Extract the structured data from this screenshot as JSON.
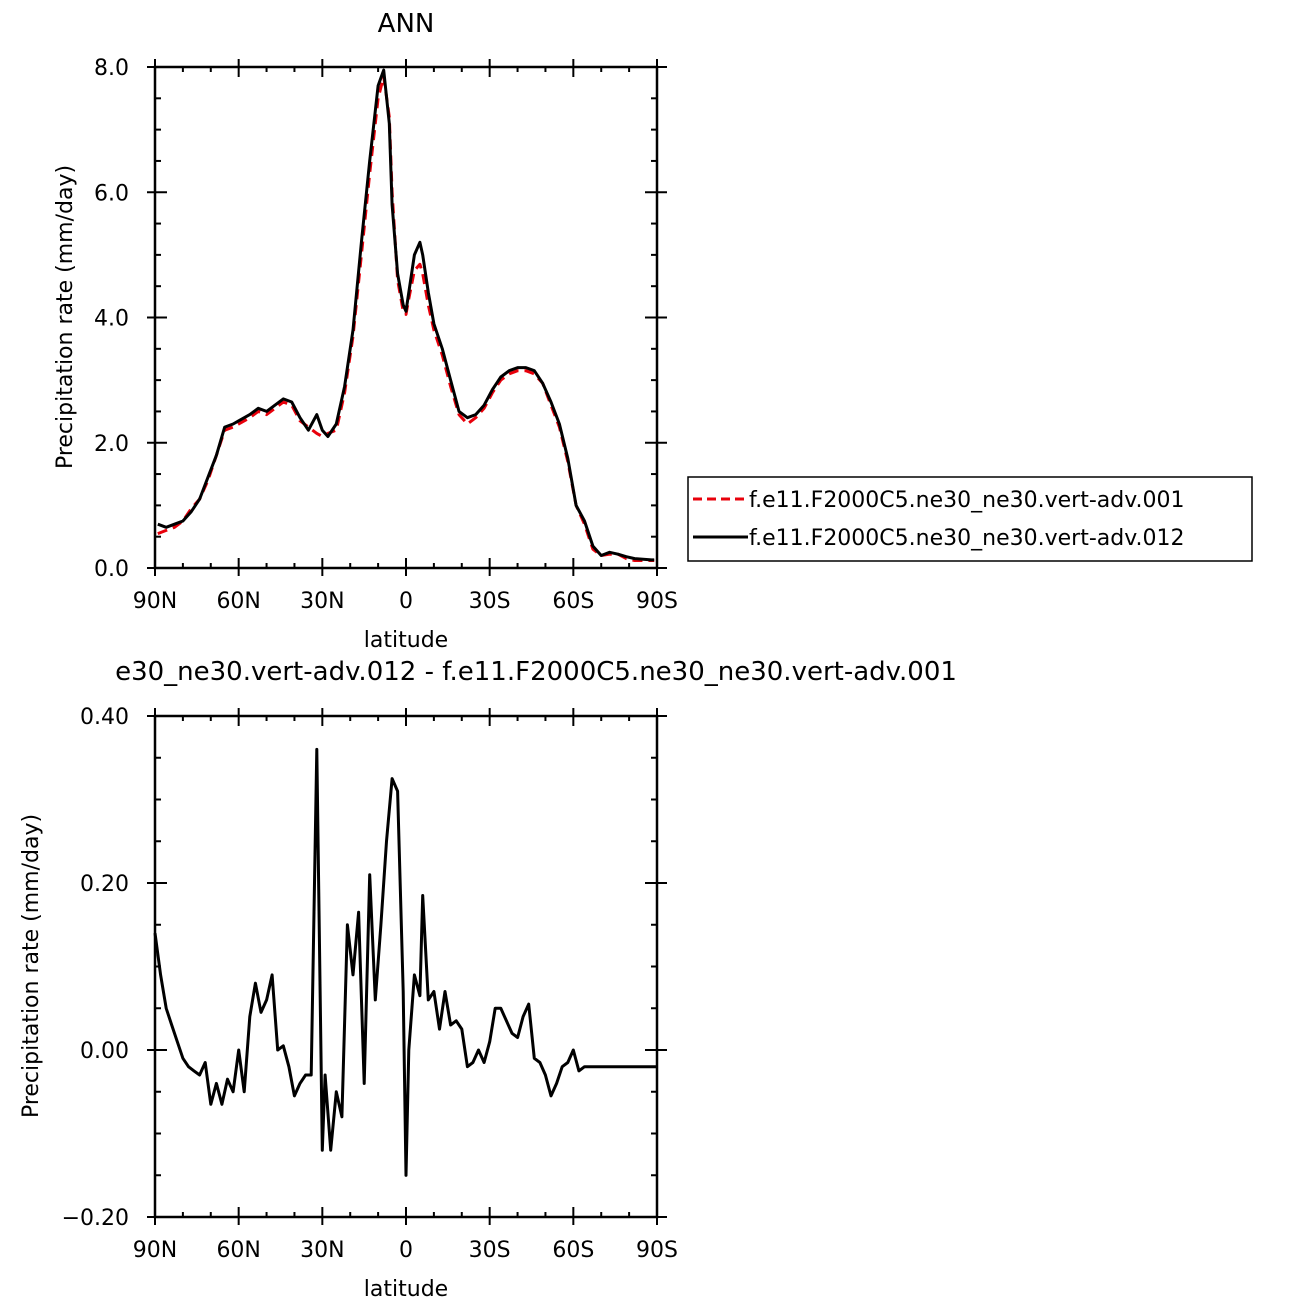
{
  "chart_data": [
    {
      "type": "line",
      "title": "ANN",
      "xlabel": "latitude",
      "ylabel": "Precipitation rate (mm/day)",
      "xlim": [
        90,
        -90
      ],
      "ylim": [
        0,
        8
      ],
      "x_ticks": [
        {
          "value": 90,
          "label": "90N"
        },
        {
          "value": 60,
          "label": "60N"
        },
        {
          "value": 30,
          "label": "30N"
        },
        {
          "value": 0,
          "label": "0"
        },
        {
          "value": -30,
          "label": "30S"
        },
        {
          "value": -60,
          "label": "60S"
        },
        {
          "value": -90,
          "label": "90S"
        }
      ],
      "y_ticks": [
        {
          "value": 0,
          "label": "0.0"
        },
        {
          "value": 2,
          "label": "2.0"
        },
        {
          "value": 4,
          "label": "4.0"
        },
        {
          "value": 6,
          "label": "6.0"
        },
        {
          "value": 8,
          "label": "8.0"
        }
      ],
      "legend": {
        "position": "right",
        "boxed": true
      },
      "series": [
        {
          "name": "f.e11.F2000C5.ne30_ne30.vert-adv.001",
          "color": "#e8000b",
          "dash": "dashed",
          "x": [
            89,
            86,
            83,
            80,
            77,
            74,
            71,
            68,
            65,
            62,
            60,
            56,
            53,
            50,
            47,
            44,
            41,
            38,
            35,
            32,
            30,
            28,
            25,
            22,
            19,
            16,
            13,
            10,
            8,
            6,
            5,
            3,
            1,
            0,
            -1,
            -3,
            -5,
            -6,
            -8,
            -10,
            -13,
            -16,
            -19,
            -22,
            -25,
            -28,
            -31,
            -34,
            -37,
            -40,
            -43,
            -46,
            -49,
            -52,
            -55,
            -58,
            -61,
            -64,
            -67,
            -70,
            -73,
            -76,
            -79,
            -82,
            -85,
            -88,
            -89
          ],
          "y": [
            0.55,
            0.6,
            0.65,
            0.75,
            0.95,
            1.1,
            1.4,
            1.8,
            2.2,
            2.25,
            2.3,
            2.4,
            2.5,
            2.45,
            2.55,
            2.65,
            2.6,
            2.35,
            2.25,
            2.15,
            2.1,
            2.15,
            2.2,
            2.8,
            3.7,
            5.0,
            6.3,
            7.5,
            7.85,
            7.2,
            6.0,
            4.6,
            4.1,
            4.05,
            4.3,
            4.75,
            4.85,
            4.7,
            4.2,
            3.8,
            3.4,
            2.9,
            2.45,
            2.3,
            2.4,
            2.55,
            2.8,
            3.0,
            3.1,
            3.15,
            3.15,
            3.1,
            2.95,
            2.6,
            2.25,
            1.7,
            1.0,
            0.7,
            0.3,
            0.2,
            0.22,
            0.22,
            0.15,
            0.12,
            0.12,
            0.12,
            0.12
          ]
        },
        {
          "name": "f.e11.F2000C5.ne30_ne30.vert-adv.012",
          "color": "#000000",
          "dash": "solid",
          "x": [
            89,
            86,
            83,
            80,
            77,
            74,
            71,
            68,
            65,
            62,
            60,
            56,
            53,
            50,
            47,
            44,
            41,
            38,
            35,
            32,
            30,
            28,
            25,
            22,
            19,
            16,
            13,
            10,
            8,
            6,
            5,
            3,
            1,
            0,
            -1,
            -3,
            -5,
            -6,
            -8,
            -10,
            -13,
            -16,
            -19,
            -22,
            -25,
            -28,
            -31,
            -34,
            -37,
            -40,
            -43,
            -46,
            -49,
            -52,
            -55,
            -58,
            -61,
            -64,
            -67,
            -70,
            -73,
            -76,
            -79,
            -82,
            -85,
            -88,
            -89
          ],
          "y": [
            0.7,
            0.65,
            0.7,
            0.75,
            0.9,
            1.1,
            1.45,
            1.8,
            2.25,
            2.3,
            2.35,
            2.45,
            2.55,
            2.5,
            2.6,
            2.7,
            2.65,
            2.4,
            2.2,
            2.45,
            2.2,
            2.1,
            2.3,
            2.9,
            3.8,
            5.2,
            6.5,
            7.7,
            7.95,
            7.1,
            5.8,
            4.7,
            4.2,
            4.1,
            4.4,
            5.0,
            5.2,
            5.0,
            4.4,
            3.9,
            3.5,
            3.0,
            2.5,
            2.4,
            2.45,
            2.6,
            2.85,
            3.05,
            3.15,
            3.2,
            3.2,
            3.15,
            2.95,
            2.65,
            2.3,
            1.75,
            1.0,
            0.75,
            0.35,
            0.2,
            0.25,
            0.22,
            0.18,
            0.15,
            0.14,
            0.13,
            0.13
          ]
        }
      ]
    },
    {
      "type": "line",
      "title": "e30_ne30.vert-adv.012 - f.e11.F2000C5.ne30_ne30.vert-adv.001",
      "xlabel": "latitude",
      "ylabel": "Precipitation rate (mm/day)",
      "xlim": [
        90,
        -90
      ],
      "ylim": [
        -0.2,
        0.4
      ],
      "x_ticks": [
        {
          "value": 90,
          "label": "90N"
        },
        {
          "value": 60,
          "label": "60N"
        },
        {
          "value": 30,
          "label": "30N"
        },
        {
          "value": 0,
          "label": "0"
        },
        {
          "value": -30,
          "label": "30S"
        },
        {
          "value": -60,
          "label": "60S"
        },
        {
          "value": -90,
          "label": "90S"
        }
      ],
      "y_ticks": [
        {
          "value": -0.2,
          "label": "−0.20"
        },
        {
          "value": 0.0,
          "label": "0.00"
        },
        {
          "value": 0.2,
          "label": "0.20"
        },
        {
          "value": 0.4,
          "label": "0.40"
        }
      ],
      "series": [
        {
          "color": "#000000",
          "dash": "solid",
          "x": [
            90,
            88,
            86,
            84,
            82,
            80,
            78,
            76,
            74,
            72,
            70,
            68,
            66,
            64,
            62,
            60,
            58,
            56,
            54,
            52,
            50,
            48,
            46,
            44,
            42,
            40,
            38,
            36,
            34,
            32,
            30,
            29,
            27,
            25,
            23,
            21,
            19,
            17,
            15,
            13,
            11,
            9,
            7,
            5,
            3,
            1,
            0,
            -1,
            -3,
            -5,
            -6,
            -8,
            -10,
            -12,
            -14,
            -16,
            -18,
            -20,
            -22,
            -24,
            -26,
            -28,
            -30,
            -32,
            -34,
            -36,
            -38,
            -40,
            -42,
            -44,
            -46,
            -48,
            -50,
            -52,
            -54,
            -56,
            -58,
            -60,
            -62,
            -64,
            -66,
            -68,
            -70,
            -72,
            -74,
            -76,
            -78,
            -80,
            -82,
            -84,
            -86,
            -88,
            -90
          ],
          "y": [
            0.14,
            0.09,
            0.05,
            0.03,
            0.01,
            -0.01,
            -0.02,
            -0.025,
            -0.03,
            -0.015,
            -0.065,
            -0.04,
            -0.065,
            -0.035,
            -0.05,
            0.0,
            -0.05,
            0.04,
            0.08,
            0.045,
            0.06,
            0.09,
            0.0,
            0.005,
            -0.02,
            -0.055,
            -0.04,
            -0.03,
            -0.03,
            0.36,
            -0.12,
            -0.03,
            -0.12,
            -0.05,
            -0.08,
            0.15,
            0.09,
            0.165,
            -0.04,
            0.21,
            0.06,
            0.15,
            0.25,
            0.325,
            0.31,
            0.07,
            -0.15,
            0.0,
            0.09,
            0.065,
            0.185,
            0.06,
            0.07,
            0.025,
            0.07,
            0.03,
            0.035,
            0.025,
            -0.02,
            -0.015,
            0.0,
            -0.015,
            0.01,
            0.05,
            0.05,
            0.035,
            0.02,
            0.015,
            0.04,
            0.055,
            -0.01,
            -0.015,
            -0.03,
            -0.055,
            -0.04,
            -0.02,
            -0.015,
            0.0,
            -0.025,
            -0.02,
            -0.02,
            -0.02,
            -0.02,
            -0.02,
            -0.02,
            -0.02,
            -0.02,
            -0.02,
            -0.02,
            -0.02,
            -0.02,
            -0.02,
            -0.02
          ]
        }
      ]
    }
  ]
}
